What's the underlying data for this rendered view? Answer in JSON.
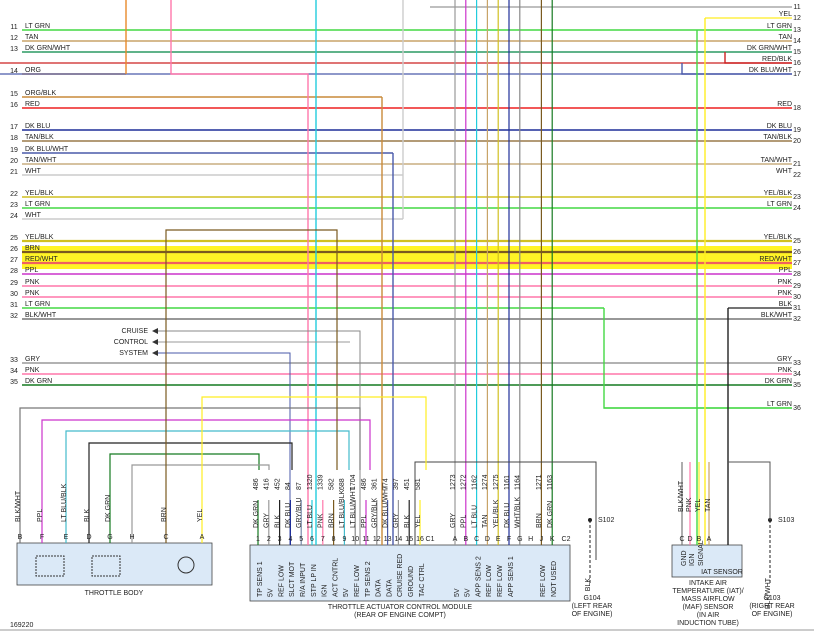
{
  "left_wires": [
    {
      "num": "11",
      "label": "LT GRN"
    },
    {
      "num": "12",
      "label": "TAN"
    },
    {
      "num": "13",
      "label": "DK GRN/WHT"
    },
    {
      "num": "14",
      "label": "ORG"
    },
    {
      "num": "15",
      "label": "ORG/BLK"
    },
    {
      "num": "16",
      "label": "RED"
    },
    {
      "num": "17",
      "label": "DK BLU"
    },
    {
      "num": "18",
      "label": "TAN/BLK"
    },
    {
      "num": "19",
      "label": "DK BLU/WHT"
    },
    {
      "num": "20",
      "label": "TAN/WHT"
    },
    {
      "num": "21",
      "label": "WHT"
    },
    {
      "num": "22",
      "label": "YEL/BLK"
    },
    {
      "num": "23",
      "label": "LT GRN"
    },
    {
      "num": "24",
      "label": "WHT"
    },
    {
      "num": "25",
      "label": "YEL/BLK"
    },
    {
      "num": "26",
      "label": "BRN"
    },
    {
      "num": "27",
      "label": "RED/WHT"
    },
    {
      "num": "28",
      "label": "PPL"
    },
    {
      "num": "29",
      "label": "PNK"
    },
    {
      "num": "30",
      "label": "PNK"
    },
    {
      "num": "31",
      "label": "LT GRN"
    },
    {
      "num": "32",
      "label": "BLK/WHT"
    },
    {
      "num": "33",
      "label": "GRY"
    },
    {
      "num": "34",
      "label": "PNK"
    },
    {
      "num": "35",
      "label": "DK GRN"
    }
  ],
  "right_wires": [
    {
      "num": "11"
    },
    {
      "num": "12",
      "label": "YEL"
    },
    {
      "num": "13",
      "label": "LT GRN"
    },
    {
      "num": "14",
      "label": "TAN"
    },
    {
      "num": "15",
      "label": "DK GRN/WHT"
    },
    {
      "num": "16",
      "label": "RED/BLK"
    },
    {
      "num": "17",
      "label": "DK BLU/WHT"
    },
    {
      "num": "18",
      "label": "RED"
    },
    {
      "num": "19",
      "label": "DK BLU"
    },
    {
      "num": "20",
      "label": "TAN/BLK"
    },
    {
      "num": "21",
      "label": "TAN/WHT"
    },
    {
      "num": "22",
      "label": "WHT"
    },
    {
      "num": "23",
      "label": "YEL/BLK"
    },
    {
      "num": "24",
      "label": "LT GRN"
    },
    {
      "num": "25",
      "label": "YEL/BLK"
    },
    {
      "num": "26"
    },
    {
      "num": "27",
      "label": "RED/WHT"
    },
    {
      "num": "28",
      "label": "PPL"
    },
    {
      "num": "29",
      "label": "PNK"
    },
    {
      "num": "30",
      "label": "PNK"
    },
    {
      "num": "31",
      "label": "BLK"
    },
    {
      "num": "32",
      "label": "BLK/WHT"
    },
    {
      "num": "33",
      "label": "GRY"
    },
    {
      "num": "34",
      "label": "PNK"
    },
    {
      "num": "35",
      "label": "DK GRN"
    },
    {
      "num": "36",
      "label": "LT GRN"
    }
  ],
  "cruise_label": [
    "CRUISE",
    "CONTROL",
    "SYSTEM"
  ],
  "throttle_body": {
    "title": "THROTTLE BODY",
    "pins": [
      {
        "letter": "B",
        "wire": "BLK/WHT"
      },
      {
        "letter": "F",
        "wire": "PPL"
      },
      {
        "letter": "E",
        "wire": "LT BLU/BLK"
      },
      {
        "letter": "D",
        "wire": "BLK"
      },
      {
        "letter": "G",
        "wire": "DK GRN"
      },
      {
        "letter": "H"
      },
      {
        "letter": "C",
        "wire": "BRN"
      },
      {
        "letter": "A",
        "wire": "YEL"
      }
    ]
  },
  "tac_module": {
    "title": "THROTTLE ACTUATOR CONTROL MODULE",
    "location": "(REAR OF ENGINE COMPT)",
    "connector_1": "C1",
    "connector_2": "C2",
    "pins_c1": [
      {
        "pin": "1",
        "wire": "DK GRN",
        "circuit": "486",
        "func": "TP SENS 1"
      },
      {
        "pin": "2",
        "wire": "GRY",
        "circuit": "416",
        "func": "5V"
      },
      {
        "pin": "3",
        "wire": "BLK",
        "circuit": "452",
        "func": "REF LOW"
      },
      {
        "pin": "4",
        "wire": "DK BLU",
        "circuit": "84",
        "func": "SLCT MOT"
      },
      {
        "pin": "5",
        "wire": "GRY/BLU",
        "circuit": "87",
        "func": "R/A INPUT"
      },
      {
        "pin": "6",
        "wire": "LT BLU",
        "circuit": "1320",
        "func": "STP LP IN"
      },
      {
        "pin": "7",
        "wire": "PNK",
        "circuit": "1339",
        "func": "IGN"
      },
      {
        "pin": "8",
        "wire": "BRN",
        "circuit": "582",
        "func": "ACT CNTRL"
      },
      {
        "pin": "9",
        "wire": "LT BLU/BLK",
        "circuit": "688",
        "func": "5V"
      },
      {
        "pin": "10",
        "wire": "LT BLU/WHT",
        "circuit": "1704",
        "func": "REF LOW"
      },
      {
        "pin": "11",
        "wire": "PPL",
        "circuit": "486",
        "func": "TP SENS 2"
      },
      {
        "pin": "12",
        "wire": "GRY/BLK",
        "circuit": "361",
        "func": "DATA"
      },
      {
        "pin": "13",
        "wire": "DK BLU/WHT",
        "circuit": "774",
        "func": "DATA"
      },
      {
        "pin": "14",
        "wire": "GRY",
        "circuit": "397",
        "func": "CRUISE RED"
      },
      {
        "pin": "15",
        "wire": "BLK",
        "circuit": "451",
        "func": "GROUND"
      },
      {
        "pin": "16",
        "wire": "YEL",
        "circuit": "581",
        "func": "TAC CTRL"
      }
    ],
    "pins_c2": [
      {
        "pin": "A",
        "wire": "GRY",
        "circuit": "1273",
        "func": "5V"
      },
      {
        "pin": "B",
        "wire": "PPL",
        "circuit": "1272",
        "func": "5V"
      },
      {
        "pin": "C",
        "wire": "LT BLU",
        "circuit": "1162",
        "func": "APP SENS 2"
      },
      {
        "pin": "D",
        "wire": "TAN",
        "circuit": "1274",
        "func": "REF LOW"
      },
      {
        "pin": "E",
        "wire": "YEL/BLK",
        "circuit": "1275",
        "func": "REF LOW"
      },
      {
        "pin": "F",
        "wire": "DK BLU",
        "circuit": "1161",
        "func": "APP SENS 1"
      },
      {
        "pin": "G",
        "wire": "WHT/BLK",
        "circuit": "1164"
      },
      {
        "pin": "H"
      },
      {
        "pin": "J",
        "wire": "BRN",
        "circuit": "1271",
        "func": "REF LOW"
      },
      {
        "pin": "K",
        "wire": "DK GRN",
        "circuit": "1163",
        "func": "NOT USED"
      }
    ]
  },
  "ground_left": {
    "splice": "S102",
    "wire": "BLK",
    "name": "G104",
    "location": [
      "(LEFT REAR",
      "OF ENGINE)"
    ]
  },
  "ground_right": {
    "splice": "S103",
    "wire": "BLK/WHT",
    "name": "G103",
    "location": [
      "(RIGHT REAR",
      "OF ENGINE)"
    ]
  },
  "iat_sensor": {
    "pins": [
      {
        "letter": "C",
        "wire": "BLK/WHT",
        "func": "GND"
      },
      {
        "letter": "D",
        "wire": "PNK",
        "func": "IGN"
      },
      {
        "letter": "B",
        "wire": "YEL",
        "func": "SIGNAL"
      },
      {
        "letter": "A",
        "wire": "TAN"
      }
    ],
    "inner_label": "IAT SENSOR",
    "caption": [
      "INTAKE AIR",
      "TEMPERATURE (IAT)/",
      "MASS AIRFLOW",
      "(MAF) SENSOR",
      "(IN AIR",
      "INDUCTION TUBE)"
    ]
  },
  "figure_id": "169220"
}
